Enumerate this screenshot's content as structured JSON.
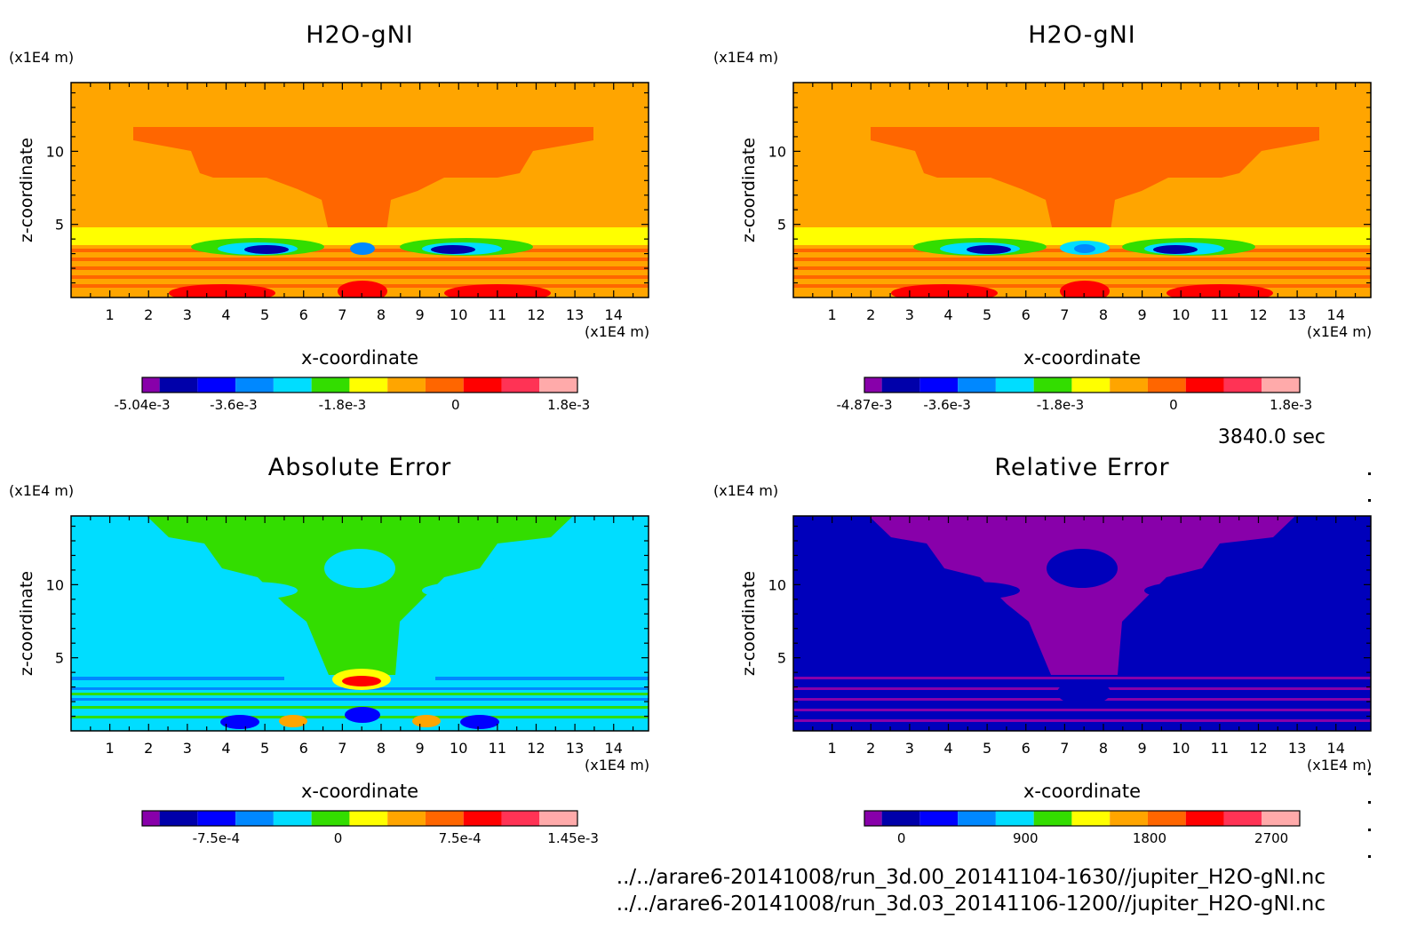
{
  "time_label": "3840.0 sec",
  "footer_lines": [
    "../../arare6-20141008/run_3d.00_20141104-1630//jupiter_H2O-gNI.nc",
    "../../arare6-20141008/run_3d.03_20141106-1200//jupiter_H2O-gNI.nc"
  ],
  "chart_data": [
    {
      "type": "heatmap",
      "title": "H2O-gNI",
      "xlabel": "x-coordinate",
      "ylabel": "z-coordinate",
      "x_unit": "(x1E4 m)",
      "y_unit": "(x1E4 m)",
      "x_ticks": [
        "1",
        "2",
        "3",
        "4",
        "5",
        "6",
        "7",
        "8",
        "9",
        "10",
        "11",
        "12",
        "13",
        "14"
      ],
      "y_ticks": [
        "5",
        "10"
      ],
      "xlim": [
        0,
        14.9
      ],
      "ylim": [
        0,
        14.7
      ],
      "background_color": "#ffa500",
      "colorbar_colors": [
        "#8800aa",
        "#0000aa",
        "#0000ff",
        "#0088ff",
        "#00ddff",
        "#33dd00",
        "#ffff00",
        "#ffa500",
        "#ff6600",
        "#ff0000",
        "#ff3355",
        "#ffaaaa"
      ],
      "colorbar_ticks": [
        {
          "label": "-5.04e-3",
          "pos": 0
        },
        {
          "label": "-3.6e-3",
          "pos": 0.21
        },
        {
          "label": "-1.8e-3",
          "pos": 0.46
        },
        {
          "label": "0",
          "pos": 0.72
        },
        {
          "label": "1.8e-3",
          "pos": 0.98
        }
      ]
    },
    {
      "type": "heatmap",
      "title": "H2O-gNI",
      "xlabel": "x-coordinate",
      "ylabel": "z-coordinate",
      "x_unit": "(x1E4 m)",
      "y_unit": "(x1E4 m)",
      "x_ticks": [
        "1",
        "2",
        "3",
        "4",
        "5",
        "6",
        "7",
        "8",
        "9",
        "10",
        "11",
        "12",
        "13",
        "14"
      ],
      "y_ticks": [
        "5",
        "10"
      ],
      "xlim": [
        0,
        14.9
      ],
      "ylim": [
        0,
        14.7
      ],
      "background_color": "#ffa500",
      "colorbar_colors": [
        "#8800aa",
        "#0000aa",
        "#0000ff",
        "#0088ff",
        "#00ddff",
        "#33dd00",
        "#ffff00",
        "#ffa500",
        "#ff6600",
        "#ff0000",
        "#ff3355",
        "#ffaaaa"
      ],
      "colorbar_ticks": [
        {
          "label": "-4.87e-3",
          "pos": 0
        },
        {
          "label": "-3.6e-3",
          "pos": 0.19
        },
        {
          "label": "-1.8e-3",
          "pos": 0.45
        },
        {
          "label": "0",
          "pos": 0.71
        },
        {
          "label": "1.8e-3",
          "pos": 0.98
        }
      ]
    },
    {
      "type": "heatmap",
      "title": "Absolute Error",
      "xlabel": "x-coordinate",
      "ylabel": "z-coordinate",
      "x_unit": "(x1E4 m)",
      "y_unit": "(x1E4 m)",
      "x_ticks": [
        "1",
        "2",
        "3",
        "4",
        "5",
        "6",
        "7",
        "8",
        "9",
        "10",
        "11",
        "12",
        "13",
        "14"
      ],
      "y_ticks": [
        "5",
        "10"
      ],
      "xlim": [
        0,
        14.9
      ],
      "ylim": [
        0,
        14.7
      ],
      "background_color": "#00ddff",
      "colorbar_colors": [
        "#8800aa",
        "#0000aa",
        "#0000ff",
        "#0088ff",
        "#00ddff",
        "#33dd00",
        "#ffff00",
        "#ffa500",
        "#ff6600",
        "#ff0000",
        "#ff3355",
        "#ffaaaa"
      ],
      "colorbar_ticks": [
        {
          "label": "-7.5e-4",
          "pos": 0.17
        },
        {
          "label": "0",
          "pos": 0.45
        },
        {
          "label": "7.5e-4",
          "pos": 0.73
        },
        {
          "label": "1.45e-3",
          "pos": 0.99
        }
      ]
    },
    {
      "type": "heatmap",
      "title": "Relative Error",
      "xlabel": "x-coordinate",
      "ylabel": "z-coordinate",
      "x_unit": "(x1E4 m)",
      "y_unit": "(x1E4 m)",
      "x_ticks": [
        "1",
        "2",
        "3",
        "4",
        "5",
        "6",
        "7",
        "8",
        "9",
        "10",
        "11",
        "12",
        "13",
        "14"
      ],
      "y_ticks": [
        "5",
        "10"
      ],
      "xlim": [
        0,
        14.9
      ],
      "ylim": [
        0,
        14.7
      ],
      "background_color": "#0000bb",
      "colorbar_colors": [
        "#8800aa",
        "#0000aa",
        "#0000ff",
        "#0088ff",
        "#00ddff",
        "#33dd00",
        "#ffff00",
        "#ffa500",
        "#ff6600",
        "#ff0000",
        "#ff3355",
        "#ffaaaa"
      ],
      "colorbar_ticks": [
        {
          "label": "0",
          "pos": 0.085
        },
        {
          "label": "900",
          "pos": 0.37
        },
        {
          "label": "1800",
          "pos": 0.655
        },
        {
          "label": "2700",
          "pos": 0.935
        }
      ]
    }
  ]
}
